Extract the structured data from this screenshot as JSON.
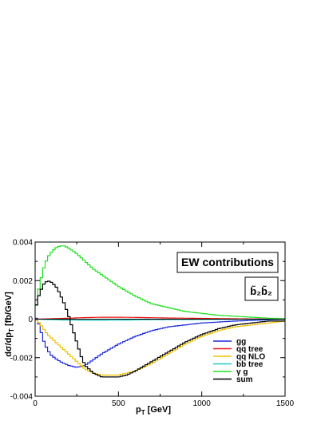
{
  "chart_data": {
    "type": "line",
    "title": "",
    "xlabel": "p",
    "xlabel_sub": "T",
    "xlabel_unit": " [GeV]",
    "ylabel": "dσ/dp",
    "ylabel_sub": "T",
    "ylabel_unit": " [fb/GeV]",
    "xlim": [
      0,
      1500
    ],
    "ylim": [
      -0.004,
      0.004
    ],
    "xticks": [
      0,
      500,
      1000,
      1500
    ],
    "xtick_labels": [
      "0",
      "500",
      "1000",
      "1500"
    ],
    "yticks": [
      -0.004,
      -0.002,
      0,
      0.002,
      0.004
    ],
    "ytick_labels": [
      "-0.004",
      "-0.002",
      "0",
      "0.002",
      "0.004"
    ],
    "grid": false,
    "step": true,
    "legend_position": "bottom-right",
    "annotation_box": "EW contributions",
    "process_label": "b̃₂b̃₂",
    "series": [
      {
        "name": "gg",
        "color": "#1a28d8",
        "x": [
          0,
          25,
          50,
          75,
          100,
          150,
          200,
          250,
          300,
          350,
          400,
          500,
          600,
          700,
          800,
          1000,
          1200,
          1500
        ],
        "y": [
          0.0002,
          -0.0003,
          -0.0011,
          -0.0016,
          -0.0019,
          -0.0022,
          -0.0024,
          -0.0025,
          -0.0024,
          -0.0021,
          -0.0018,
          -0.0013,
          -0.0009,
          -0.0006,
          -0.0004,
          -0.0002,
          -0.0001,
          0.0
        ]
      },
      {
        "name": "qq tree",
        "color": "#ee1111",
        "x": [
          0,
          100,
          200,
          300,
          400,
          500,
          600,
          800,
          1000,
          1200,
          1500
        ],
        "y": [
          0.0,
          2e-05,
          5e-05,
          8e-05,
          0.0001,
          0.0001,
          9e-05,
          6e-05,
          4e-05,
          2e-05,
          0.0
        ]
      },
      {
        "name": "qq NLO",
        "color": "#f0c000",
        "x": [
          0,
          25,
          50,
          75,
          100,
          150,
          200,
          250,
          300,
          350,
          400,
          450,
          500,
          550,
          600,
          700,
          800,
          900,
          1000,
          1100,
          1200,
          1300,
          1400,
          1500
        ],
        "y": [
          0.0,
          -0.0002,
          -0.0005,
          -0.0008,
          -0.001,
          -0.0014,
          -0.0018,
          -0.0022,
          -0.0026,
          -0.0028,
          -0.0029,
          -0.0029,
          -0.0029,
          -0.0028,
          -0.0027,
          -0.0023,
          -0.0018,
          -0.0013,
          -0.0009,
          -0.0006,
          -0.0004,
          -0.0003,
          -0.0002,
          -0.0001
        ]
      },
      {
        "name": "bb tree",
        "color": "#22c8c8",
        "x": [
          0,
          100,
          200,
          300,
          400,
          500,
          600,
          800,
          1000,
          1200,
          1500
        ],
        "y": [
          0.0,
          -3e-05,
          -5e-05,
          -6e-05,
          -6e-05,
          -5e-05,
          -4e-05,
          -3e-05,
          -2e-05,
          -1e-05,
          0.0
        ]
      },
      {
        "name": "γ g",
        "color": "#22e022",
        "x": [
          0,
          25,
          50,
          75,
          100,
          125,
          150,
          175,
          200,
          250,
          300,
          350,
          400,
          500,
          600,
          700,
          800,
          900,
          1000,
          1100,
          1200,
          1300,
          1400,
          1500
        ],
        "y": [
          0.0003,
          0.0017,
          0.0026,
          0.0032,
          0.0035,
          0.0037,
          0.0038,
          0.0038,
          0.0037,
          0.0034,
          0.003,
          0.0026,
          0.0023,
          0.0017,
          0.0012,
          0.0008,
          0.0006,
          0.0004,
          0.0003,
          0.0002,
          0.00015,
          0.0001,
          5e-05,
          3e-05
        ]
      },
      {
        "name": "sum",
        "color": "#000000",
        "x": [
          0,
          25,
          50,
          75,
          100,
          125,
          150,
          175,
          200,
          225,
          250,
          275,
          300,
          350,
          400,
          450,
          500,
          550,
          600,
          700,
          800,
          900,
          1000,
          1100,
          1200,
          1300,
          1400,
          1500
        ],
        "y": [
          0.0005,
          0.0013,
          0.0018,
          0.002,
          0.0019,
          0.0017,
          0.0013,
          0.0008,
          0.0002,
          -0.0005,
          -0.0012,
          -0.0019,
          -0.0024,
          -0.0028,
          -0.003,
          -0.003,
          -0.003,
          -0.0029,
          -0.0027,
          -0.0022,
          -0.0017,
          -0.0012,
          -0.0008,
          -0.0005,
          -0.0003,
          -0.0002,
          -0.0001,
          -0.0001
        ]
      }
    ]
  }
}
